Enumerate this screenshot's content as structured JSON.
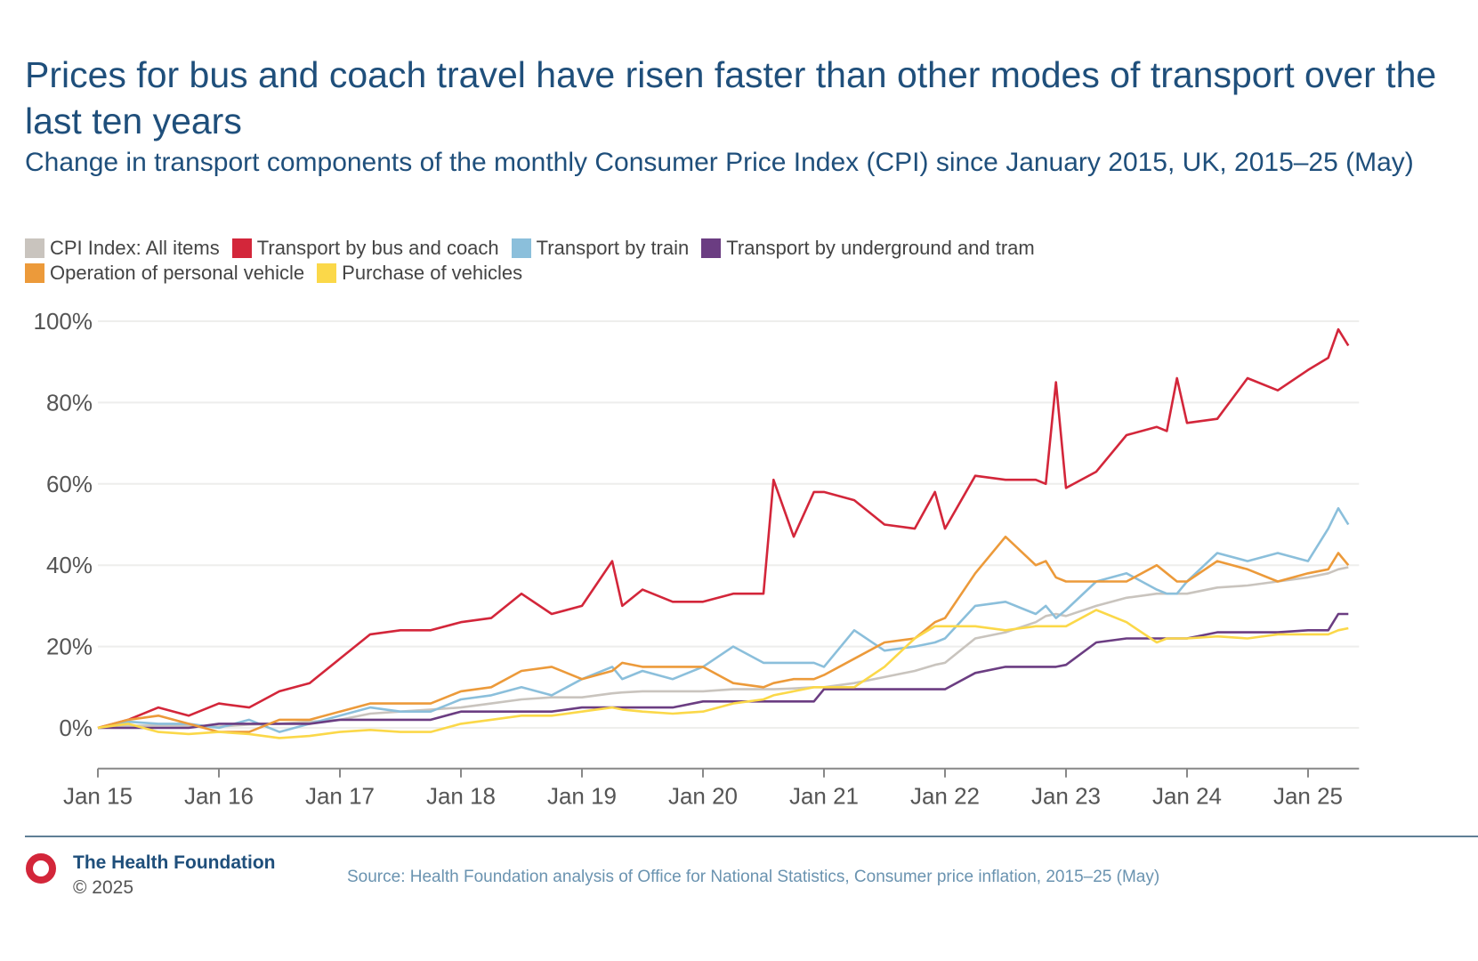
{
  "chart_data": {
    "type": "line",
    "title": "Prices for bus and coach travel have risen faster than other modes of transport over the last ten years",
    "subtitle": "Change in transport components of the monthly Consumer Price Index (CPI) since January 2015, UK, 2015–25 (May)",
    "xlabel": "",
    "ylabel": "",
    "ylim": [
      -10,
      100
    ],
    "yticks": [
      0,
      20,
      40,
      60,
      80,
      100
    ],
    "ytick_labels": [
      "0%",
      "20%",
      "40%",
      "60%",
      "80%",
      "100%"
    ],
    "xticks": [
      "2015-01",
      "2016-01",
      "2017-01",
      "2018-01",
      "2019-01",
      "2020-01",
      "2021-01",
      "2022-01",
      "2023-01",
      "2024-01",
      "2025-01"
    ],
    "xtick_labels": [
      "Jan 15",
      "Jan 16",
      "Jan 17",
      "Jan 18",
      "Jan 19",
      "Jan 20",
      "Jan 21",
      "Jan 22",
      "Jan 23",
      "Jan 24",
      "Jan 25"
    ],
    "grid": "horizontal",
    "legend_placement": "top-left",
    "x": [
      "2015-01",
      "2015-04",
      "2015-07",
      "2015-10",
      "2016-01",
      "2016-04",
      "2016-07",
      "2016-10",
      "2017-01",
      "2017-04",
      "2017-07",
      "2017-10",
      "2018-01",
      "2018-04",
      "2018-07",
      "2018-10",
      "2019-01",
      "2019-04",
      "2019-05",
      "2019-07",
      "2019-10",
      "2020-01",
      "2020-04",
      "2020-07",
      "2020-08",
      "2020-10",
      "2020-12",
      "2021-01",
      "2021-04",
      "2021-07",
      "2021-10",
      "2021-12",
      "2022-01",
      "2022-04",
      "2022-07",
      "2022-10",
      "2022-11",
      "2022-12",
      "2023-01",
      "2023-04",
      "2023-07",
      "2023-10",
      "2023-11",
      "2023-12",
      "2024-01",
      "2024-04",
      "2024-07",
      "2024-10",
      "2025-01",
      "2025-03",
      "2025-04",
      "2025-05"
    ],
    "series": [
      {
        "name": "CPI Index: All items",
        "color": "#c9c4be",
        "values": [
          0,
          0.5,
          0.6,
          0.5,
          0.3,
          0.8,
          1,
          1.5,
          2,
          3.5,
          4,
          4.5,
          5,
          6,
          7,
          7.5,
          7.5,
          8.5,
          8.7,
          9,
          9,
          9,
          9.5,
          9.5,
          9.5,
          9.7,
          10,
          10,
          11,
          12.5,
          14,
          15.5,
          16,
          22,
          23.5,
          26,
          27.5,
          28,
          27.5,
          30,
          32,
          33,
          33,
          33,
          33,
          34.5,
          35,
          36,
          37,
          38,
          39,
          39.5
        ]
      },
      {
        "name": "Transport by bus and coach",
        "color": "#d3263a",
        "values": [
          0,
          2,
          5,
          3,
          6,
          5,
          9,
          11,
          17,
          23,
          24,
          24,
          26,
          27,
          33,
          28,
          30,
          41,
          30,
          34,
          31,
          31,
          33,
          33,
          61,
          47,
          58,
          58,
          56,
          50,
          49,
          58,
          49,
          62,
          61,
          61,
          60,
          85,
          59,
          63,
          72,
          74,
          73,
          86,
          75,
          76,
          86,
          83,
          88,
          91,
          98,
          94
        ]
      },
      {
        "name": "Transport by train",
        "color": "#8bbfdb",
        "values": [
          0,
          1.5,
          1,
          1,
          0,
          2,
          -1,
          1,
          3,
          5,
          4,
          4,
          7,
          8,
          10,
          8,
          12,
          15,
          12,
          14,
          12,
          15,
          20,
          16,
          16,
          16,
          16,
          15,
          24,
          19,
          20,
          21,
          22,
          30,
          31,
          28,
          30,
          27,
          29,
          36,
          38,
          34,
          33,
          33,
          36,
          43,
          41,
          43,
          41,
          49,
          54,
          50
        ]
      },
      {
        "name": "Transport by underground and tram",
        "color": "#6b3d82",
        "values": [
          0,
          0,
          0,
          0,
          1,
          1,
          1,
          1,
          2,
          2,
          2,
          2,
          4,
          4,
          4,
          4,
          5,
          5,
          5,
          5,
          5,
          6.5,
          6.5,
          6.5,
          6.5,
          6.5,
          6.5,
          9.5,
          9.5,
          9.5,
          9.5,
          9.5,
          9.5,
          13.5,
          15,
          15,
          15,
          15,
          15.5,
          21,
          22,
          22,
          22,
          22,
          22,
          23.5,
          23.5,
          23.5,
          24,
          24,
          28,
          28
        ]
      },
      {
        "name": "Operation of personal vehicle",
        "color": "#ec9a3a",
        "values": [
          0,
          2,
          3,
          1,
          -1,
          -1,
          2,
          2,
          4,
          6,
          6,
          6,
          9,
          10,
          14,
          15,
          12,
          14,
          16,
          15,
          15,
          15,
          11,
          10,
          11,
          12,
          12,
          13,
          17,
          21,
          22,
          26,
          27,
          38,
          47,
          40,
          41,
          37,
          36,
          36,
          36,
          40,
          38,
          36,
          36,
          41,
          39,
          36,
          38,
          39,
          43,
          40
        ]
      },
      {
        "name": "Purchase of vehicles",
        "color": "#fbd849",
        "values": [
          0,
          1,
          -1,
          -1.5,
          -1,
          -1.5,
          -2.5,
          -2,
          -1,
          -0.5,
          -1,
          -1,
          1,
          2,
          3,
          3,
          4,
          5,
          4.5,
          4,
          3.5,
          4,
          6,
          7,
          8,
          9,
          10,
          10,
          10,
          15,
          22,
          25,
          25,
          25,
          24,
          25,
          25,
          25,
          25,
          29,
          26,
          21,
          22,
          22,
          22,
          22.5,
          22,
          23,
          23,
          23,
          24,
          24.5
        ]
      }
    ]
  },
  "footer": {
    "organisation": "The Health Foundation",
    "copyright": "© 2025",
    "source": "Source: Health Foundation analysis of Office for National Statistics, Consumer price inflation, 2015–25 (May)",
    "logo_color": "#d3263a"
  }
}
